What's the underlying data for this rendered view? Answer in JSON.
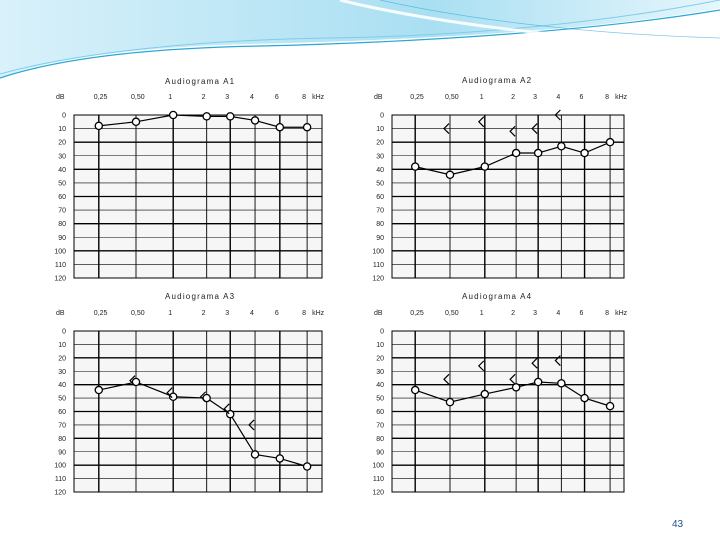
{
  "slide_number": "43",
  "colors": {
    "swoosh_light": "#bfe6f6",
    "swoosh_mid": "#7fcde9",
    "swoosh_dark": "#2aa7d6",
    "grid": "#000000",
    "marker_fill": "#ffffff"
  },
  "chart_data": [
    {
      "type": "line",
      "title": "Audiograma A1",
      "y_unit": "dB",
      "x_unit": "kHz",
      "x_ticks": [
        "0,25",
        "0,50",
        "1",
        "2",
        "3",
        "4",
        "6",
        "8"
      ],
      "y_ticks": [
        "0",
        "10",
        "20",
        "30",
        "40",
        "50",
        "60",
        "70",
        "80",
        "90",
        "100",
        "110",
        "120"
      ],
      "ylim": [
        0,
        120
      ],
      "y_inverted": true,
      "grid": true,
      "series": [
        {
          "marker": "circle",
          "x": [
            "0,25",
            "0,50",
            "1",
            "2",
            "3",
            "4",
            "6",
            "8"
          ],
          "values": [
            8,
            5,
            0,
            1,
            1,
            4,
            9,
            9
          ]
        }
      ]
    },
    {
      "type": "line",
      "title": "Audiograma A2",
      "y_unit": "dB",
      "x_unit": "kHz",
      "x_ticks": [
        "0,25",
        "0,50",
        "1",
        "2",
        "3",
        "4",
        "6",
        "8"
      ],
      "y_ticks": [
        "0",
        "10",
        "20",
        "30",
        "40",
        "50",
        "60",
        "70",
        "80",
        "90",
        "100",
        "110",
        "120"
      ],
      "ylim": [
        0,
        120
      ],
      "y_inverted": true,
      "grid": true,
      "series": [
        {
          "marker": "circle",
          "x": [
            "0,25",
            "0,50",
            "1",
            "2",
            "3",
            "4",
            "6",
            "8"
          ],
          "values": [
            38,
            44,
            38,
            28,
            28,
            23,
            28,
            20
          ]
        },
        {
          "marker": "bracket",
          "x": [
            "0,50",
            "1",
            "2",
            "3",
            "4"
          ],
          "values": [
            10,
            5,
            12,
            10,
            0
          ]
        }
      ]
    },
    {
      "type": "line",
      "title": "Audiograma A3",
      "y_unit": "dB",
      "x_unit": "kHz",
      "x_ticks": [
        "0,25",
        "0,50",
        "1",
        "2",
        "3",
        "4",
        "6",
        "8"
      ],
      "y_ticks": [
        "0",
        "10",
        "20",
        "30",
        "40",
        "50",
        "60",
        "70",
        "80",
        "90",
        "100",
        "110",
        "120"
      ],
      "ylim": [
        0,
        120
      ],
      "y_inverted": true,
      "grid": true,
      "series": [
        {
          "marker": "circle",
          "x": [
            "0,25",
            "0,50",
            "1",
            "2",
            "3",
            "4",
            "6",
            "8"
          ],
          "values": [
            44,
            38,
            49,
            50,
            62,
            92,
            95,
            101
          ]
        },
        {
          "marker": "bracket",
          "x": [
            "0,50",
            "1",
            "2",
            "3",
            "4"
          ],
          "values": [
            37,
            46,
            49,
            58,
            70
          ]
        }
      ]
    },
    {
      "type": "line",
      "title": "Audiograma A4",
      "y_unit": "dB",
      "x_unit": "kHz",
      "x_ticks": [
        "0,25",
        "0,50",
        "1",
        "2",
        "3",
        "4",
        "6",
        "8"
      ],
      "y_ticks": [
        "0",
        "10",
        "20",
        "30",
        "40",
        "50",
        "60",
        "70",
        "80",
        "90",
        "100",
        "110",
        "120"
      ],
      "ylim": [
        0,
        120
      ],
      "y_inverted": true,
      "grid": true,
      "series": [
        {
          "marker": "circle",
          "x": [
            "0,25",
            "0,50",
            "1",
            "2",
            "3",
            "4",
            "6",
            "8"
          ],
          "values": [
            44,
            53,
            47,
            42,
            38,
            39,
            50,
            56
          ]
        },
        {
          "marker": "bracket",
          "x": [
            "0,50",
            "1",
            "2",
            "3",
            "4"
          ],
          "values": [
            36,
            26,
            36,
            24,
            22
          ]
        }
      ]
    }
  ]
}
